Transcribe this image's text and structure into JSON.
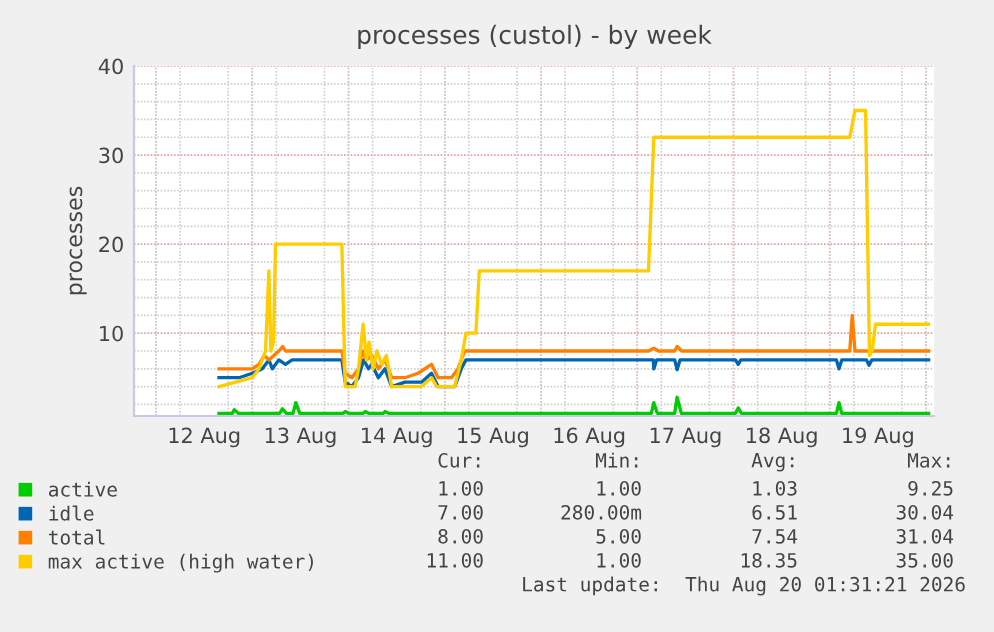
{
  "chart_data": {
    "type": "line",
    "title": "processes (custol) - by week",
    "ylabel": "processes",
    "xlim": [
      "2026-08-11T18:30",
      "2026-08-20T02:00"
    ],
    "xticks": [
      {
        "value": "2026-08-12T12:00",
        "label": "12 Aug"
      },
      {
        "value": "2026-08-13T12:00",
        "label": "13 Aug"
      },
      {
        "value": "2026-08-14T12:00",
        "label": "14 Aug"
      },
      {
        "value": "2026-08-15T12:00",
        "label": "15 Aug"
      },
      {
        "value": "2026-08-16T12:00",
        "label": "16 Aug"
      },
      {
        "value": "2026-08-17T12:00",
        "label": "17 Aug"
      },
      {
        "value": "2026-08-18T12:00",
        "label": "18 Aug"
      },
      {
        "value": "2026-08-19T12:00",
        "label": "19 Aug"
      }
    ],
    "ylim": [
      0.7,
      40
    ],
    "yticks": [
      10,
      20,
      30,
      40
    ],
    "grid": true,
    "legend": "bottom left",
    "marker": "none",
    "line_style": "solid",
    "series": [
      {
        "name": "active",
        "color": "#00cc00",
        "x": [
          "2026-08-12T15:42",
          "2026-08-12T19:00",
          "2026-08-12T19:30",
          "2026-08-12T20:30",
          "2026-08-13T06:50",
          "2026-08-13T07:30",
          "2026-08-13T08:30",
          "2026-08-13T10:10",
          "2026-08-13T10:50",
          "2026-08-13T11:50",
          "2026-08-13T22:40",
          "2026-08-13T23:10",
          "2026-08-14T00:00",
          "2026-08-14T03:40",
          "2026-08-14T04:10",
          "2026-08-14T05:00",
          "2026-08-14T08:40",
          "2026-08-14T09:05",
          "2026-08-14T10:00",
          "2026-08-17T03:30",
          "2026-08-17T04:08",
          "2026-08-17T05:00",
          "2026-08-17T09:20",
          "2026-08-17T09:56",
          "2026-08-17T11:00",
          "2026-08-18T00:30",
          "2026-08-18T01:10",
          "2026-08-18T02:00",
          "2026-08-19T01:40",
          "2026-08-19T02:18",
          "2026-08-19T03:00",
          "2026-08-20T00:40"
        ],
        "values": [
          1,
          1,
          1.4,
          1,
          1,
          1.5,
          1,
          1,
          2.2,
          1,
          1,
          1.2,
          1,
          1,
          1.2,
          1,
          1,
          1.2,
          1,
          1,
          2.2,
          1,
          1,
          2.8,
          1,
          1,
          1.6,
          1,
          1,
          2.2,
          1,
          1
        ]
      },
      {
        "name": "idle",
        "color": "#0066b3",
        "x": [
          "2026-08-12T15:42",
          "2026-08-12T20:42",
          "2026-08-13T00:00",
          "2026-08-13T02:30",
          "2026-08-13T04:08",
          "2026-08-13T05:00",
          "2026-08-13T06:37",
          "2026-08-13T08:16",
          "2026-08-13T09:56",
          "2026-08-13T22:20",
          "2026-08-13T23:10",
          "2026-08-14T00:49",
          "2026-08-14T02:29",
          "2026-08-14T03:45",
          "2026-08-14T04:58",
          "2026-08-14T05:47",
          "2026-08-14T07:26",
          "2026-08-14T09:06",
          "2026-08-14T10:45",
          "2026-08-14T14:04",
          "2026-08-14T18:12",
          "2026-08-14T20:41",
          "2026-08-14T22:20",
          "2026-08-15T02:28",
          "2026-08-15T04:07",
          "2026-08-15T05:17",
          "2026-08-17T04:00",
          "2026-08-17T04:08",
          "2026-08-17T04:50",
          "2026-08-17T09:20",
          "2026-08-17T09:56",
          "2026-08-17T10:40",
          "2026-08-18T00:30",
          "2026-08-18T01:10",
          "2026-08-18T01:50",
          "2026-08-19T01:40",
          "2026-08-19T02:18",
          "2026-08-19T03:00",
          "2026-08-19T09:10",
          "2026-08-19T09:48",
          "2026-08-19T10:30",
          "2026-08-20T00:40"
        ],
        "values": [
          5,
          5,
          5.5,
          6,
          7,
          6,
          7,
          6.5,
          7,
          7,
          4.5,
          4,
          5,
          7,
          6,
          6.5,
          5,
          6,
          4,
          4.5,
          4.5,
          5.5,
          4,
          4,
          6,
          7,
          7,
          6,
          7,
          7,
          5.9,
          7,
          7,
          6.5,
          7,
          7,
          6,
          7,
          7,
          6.4,
          7,
          7
        ]
      },
      {
        "name": "total",
        "color": "#ff8000",
        "x": [
          "2026-08-12T15:42",
          "2026-08-12T20:42",
          "2026-08-13T00:00",
          "2026-08-13T01:40",
          "2026-08-13T03:00",
          "2026-08-13T04:08",
          "2026-08-13T06:37",
          "2026-08-13T07:36",
          "2026-08-13T08:16",
          "2026-08-13T22:20",
          "2026-08-13T23:10",
          "2026-08-14T00:49",
          "2026-08-14T02:29",
          "2026-08-14T03:28",
          "2026-08-14T04:28",
          "2026-08-14T05:47",
          "2026-08-14T07:26",
          "2026-08-14T09:06",
          "2026-08-14T10:45",
          "2026-08-14T14:04",
          "2026-08-14T17:22",
          "2026-08-14T20:41",
          "2026-08-14T22:20",
          "2026-08-15T01:39",
          "2026-08-15T03:18",
          "2026-08-15T04:57",
          "2026-08-17T02:48",
          "2026-08-17T04:08",
          "2026-08-17T05:18",
          "2026-08-17T09:20",
          "2026-08-17T09:56",
          "2026-08-17T11:05",
          "2026-08-19T05:00",
          "2026-08-19T05:37",
          "2026-08-19T06:17",
          "2026-08-20T00:40"
        ],
        "values": [
          6,
          6,
          6,
          6.5,
          7.5,
          7,
          8,
          8.5,
          8,
          8,
          5.5,
          5,
          6,
          8,
          7,
          7.5,
          6,
          7,
          5,
          5,
          5.5,
          6.5,
          5,
          5,
          6,
          8,
          8,
          8.3,
          8,
          8,
          8.5,
          8,
          8,
          12,
          8,
          8
        ]
      },
      {
        "name": "max active (high water)",
        "color": "#ffcc00",
        "x": [
          "2026-08-12T15:40",
          "2026-08-13T00:00",
          "2026-08-13T01:40",
          "2026-08-13T03:18",
          "2026-08-13T04:08",
          "2026-08-13T04:38",
          "2026-08-13T05:18",
          "2026-08-13T05:47",
          "2026-08-13T22:20",
          "2026-08-13T23:10",
          "2026-08-14T01:39",
          "2026-08-14T02:29",
          "2026-08-14T03:38",
          "2026-08-14T04:28",
          "2026-08-14T05:07",
          "2026-08-14T06:07",
          "2026-08-14T07:06",
          "2026-08-14T08:16",
          "2026-08-14T09:26",
          "2026-08-14T10:45",
          "2026-08-14T14:04",
          "2026-08-14T18:12",
          "2026-08-14T20:41",
          "2026-08-14T22:00",
          "2026-08-15T02:28",
          "2026-08-15T04:07",
          "2026-08-15T05:17",
          "2026-08-15T07:46",
          "2026-08-15T08:36",
          "2026-08-17T02:48",
          "2026-08-17T04:08",
          "2026-08-19T05:00",
          "2026-08-19T06:17",
          "2026-08-19T08:56",
          "2026-08-19T09:55",
          "2026-08-19T10:35",
          "2026-08-19T11:25",
          "2026-08-20T00:40"
        ],
        "values": [
          4,
          5,
          6,
          8,
          17,
          8,
          9,
          20,
          20,
          4,
          4,
          6,
          11,
          7,
          9,
          6,
          8,
          6.5,
          7.5,
          4,
          4,
          4,
          5,
          4,
          4,
          7,
          10,
          10,
          17,
          17,
          32,
          32,
          35,
          35,
          7.5,
          8,
          11,
          11
        ]
      }
    ],
    "annotations": [
      "Cur:",
      "Min:",
      "Avg:",
      "Max:",
      "1.00",
      "1.00",
      "1.03",
      "9.25",
      "7.00",
      "280.00m",
      "6.51",
      "30.04",
      "8.00",
      "5.00",
      "7.54",
      "31.04",
      "11.00",
      "1.00",
      "18.35",
      "35.00",
      "Last update:  Thu Aug 20 01:31:21 2026"
    ]
  }
}
